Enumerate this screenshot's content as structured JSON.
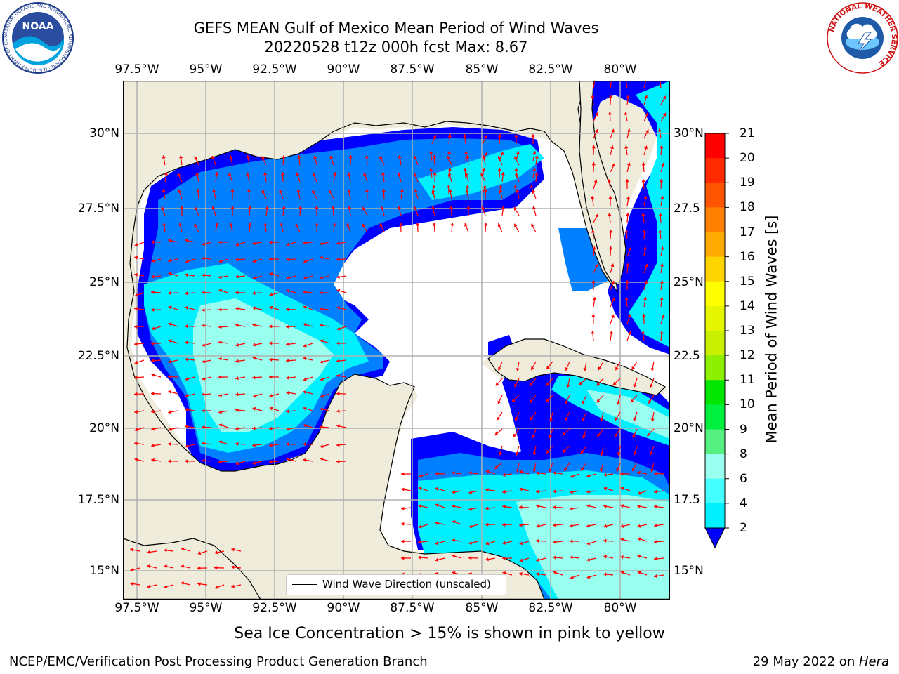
{
  "title": {
    "line1": "GEFS MEAN Gulf of Mexico Mean Period of Wind Waves",
    "line2": "20220528 t12z 000h fcst   Max: 8.67"
  },
  "logos": {
    "noaa": {
      "text": "NOAA",
      "ring_text": "NATIONAL OCEANIC AND ATMOSPHERIC ADMINISTRATION · U.S. DEPARTMENT OF COMMERCE"
    },
    "nws": {
      "ring_text": "NATIONAL WEATHER SERVICE"
    }
  },
  "map": {
    "lon_ticks": [
      "97.5°W",
      "95°W",
      "92.5°W",
      "90°W",
      "87.5°W",
      "85°W",
      "82.5°W",
      "80°W"
    ],
    "lat_ticks_left": [
      "30°N",
      "27.5°N",
      "25°N",
      "22.5°N",
      "20°N",
      "17.5°N",
      "15°N"
    ],
    "lat_ticks_right": [
      "30°N",
      "27.5",
      "25°N",
      "22.5",
      "20°N",
      "17.5",
      "15°N"
    ],
    "land_color": "#efecdc",
    "ocean_color": "#ffffff",
    "grid_color": "#b0b0b0",
    "arrow_color": "#ff0000"
  },
  "legend": {
    "label": "Wind Wave Direction (unscaled)"
  },
  "colorbar": {
    "label": "Mean Period of Wind Waves [s]",
    "ticks": [
      "21",
      "20",
      "19",
      "18",
      "17",
      "16",
      "15",
      "14",
      "13",
      "12",
      "11",
      "10",
      "9",
      "8",
      "6",
      "4",
      "2"
    ],
    "colors": [
      "#ff0000",
      "#ff2a00",
      "#ff5500",
      "#ff8000",
      "#ffaa00",
      "#ffd500",
      "#ffff00",
      "#e6f500",
      "#c8f000",
      "#8cf000",
      "#00e600",
      "#00f040",
      "#55f080",
      "#99ffee",
      "#44ffff",
      "#00f0ff",
      "#0080ff"
    ],
    "extend_color": "#0000ff"
  },
  "subcaption": "Sea Ice Concentration > 15% is shown in pink to yellow",
  "footer": {
    "left": "NCEP/EMC/Verification Post Processing Product Generation Branch",
    "right_date": "29 May 2022 on ",
    "right_host": "Hera"
  }
}
